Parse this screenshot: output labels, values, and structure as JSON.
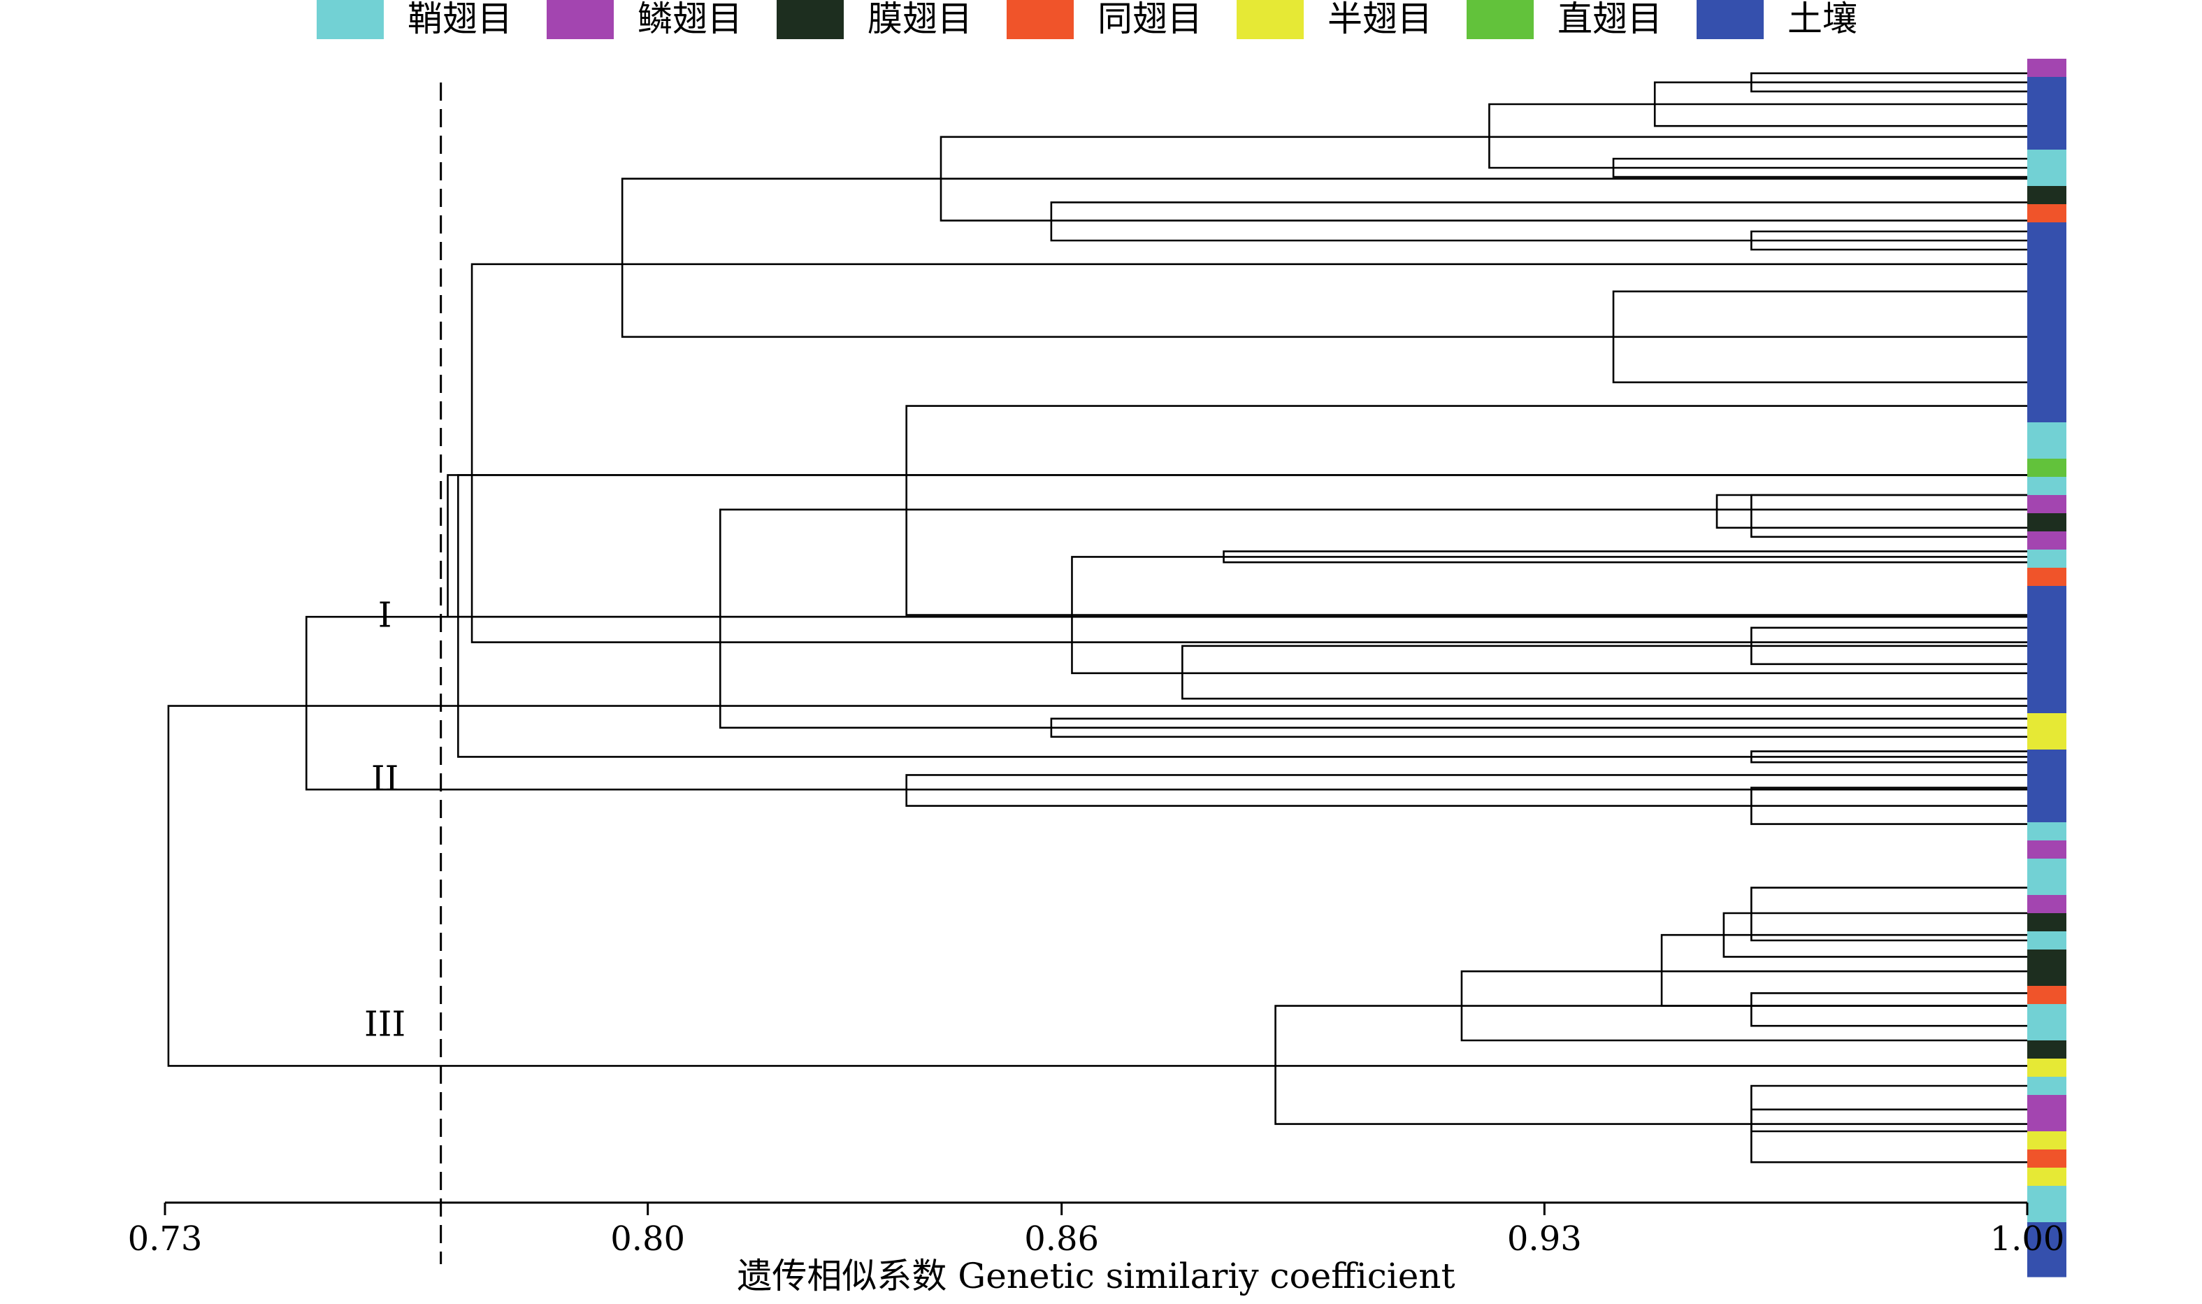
{
  "chart_data": {
    "type": "dendrogram",
    "xlabel": "遗传相似系数 Genetic similariy coefficient",
    "xlim": [
      0.73,
      1.0
    ],
    "xticks": [
      "0.73",
      "0.80",
      "0.86",
      "0.93",
      "1.00"
    ],
    "cutoff": 0.77,
    "legend": [
      {
        "label": "鞘翅目",
        "color": "#72d1d4"
      },
      {
        "label": "鳞翅目",
        "color": "#a345b0"
      },
      {
        "label": "膜翅目",
        "color": "#1d2e1f"
      },
      {
        "label": "同翅目",
        "color": "#f0542a"
      },
      {
        "label": "半翅目",
        "color": "#e6e935"
      },
      {
        "label": "直翅目",
        "color": "#62c23b"
      },
      {
        "label": "土壤",
        "color": "#3550ad"
      }
    ],
    "clusters": [
      {
        "label": "I",
        "sim": 0.77,
        "row": 31.6
      },
      {
        "label": "II",
        "sim": 0.77,
        "row": 40.6
      },
      {
        "label": "III",
        "sim": 0.77,
        "row": 54.1
      }
    ],
    "leaf_colors": [
      "鳞翅目",
      "土壤",
      "土壤",
      "土壤",
      "土壤",
      "鞘翅目",
      "鞘翅目",
      "膜翅目",
      "同翅目",
      "土壤",
      "土壤",
      "土壤",
      "土壤",
      "土壤",
      "土壤",
      "土壤",
      "土壤",
      "土壤",
      "土壤",
      "土壤",
      "鞘翅目",
      "鞘翅目",
      "直翅目",
      "鞘翅目",
      "鳞翅目",
      "膜翅目",
      "鳞翅目",
      "鞘翅目",
      "同翅目",
      "土壤",
      "土壤",
      "土壤",
      "土壤",
      "土壤",
      "土壤",
      "土壤",
      "半翅目",
      "半翅目",
      "土壤",
      "土壤",
      "土壤",
      "土壤",
      "鞘翅目",
      "鳞翅目",
      "鞘翅目",
      "鞘翅目",
      "鳞翅目",
      "膜翅目",
      "鞘翅目",
      "膜翅目",
      "膜翅目",
      "同翅目",
      "鞘翅目",
      "鞘翅目",
      "膜翅目",
      "半翅目",
      "鞘翅目",
      "鳞翅目",
      "鳞翅目",
      "半翅目",
      "同翅目",
      "半翅目",
      "鞘翅目",
      "鞘翅目",
      "土壤",
      "土壤",
      "土壤"
    ],
    "links": [
      {
        "s": 0.96,
        "y1": 0.3,
        "y2": 1.3
      },
      {
        "s": 0.946,
        "y1": 0.8,
        "y2": 3.2
      },
      {
        "s": 0.94,
        "y1": 5.0,
        "y2": 6.0
      },
      {
        "s": 0.922,
        "y1": 2.0,
        "y2": 5.5
      },
      {
        "s": 0.96,
        "y1": 9.0,
        "y2": 10.0
      },
      {
        "s": 0.8585,
        "y1": 7.4,
        "y2": 9.5
      },
      {
        "s": 0.8425,
        "y1": 3.8,
        "y2": 8.4
      },
      {
        "s": 0.94,
        "y1": 12.3,
        "y2": 17.3
      },
      {
        "s": 0.7963,
        "y1": 6.1,
        "y2": 14.8
      },
      {
        "s": 0.955,
        "y1": 23.5,
        "y2": 25.3
      },
      {
        "s": 0.96,
        "y1": 23.5,
        "y2": 25.8
      },
      {
        "s": 0.8835,
        "y1": 26.6,
        "y2": 27.2
      },
      {
        "s": 0.96,
        "y1": 30.8,
        "y2": 32.8
      },
      {
        "s": 0.8775,
        "y1": 31.8,
        "y2": 34.7
      },
      {
        "s": 0.8615,
        "y1": 26.9,
        "y2": 33.3
      },
      {
        "s": 0.8375,
        "y1": 18.6,
        "y2": 30.1
      },
      {
        "s": 0.8585,
        "y1": 35.8,
        "y2": 36.8
      },
      {
        "s": 0.8105,
        "y1": 24.3,
        "y2": 36.3
      },
      {
        "s": 0.7745,
        "y1": 10.8,
        "y2": 31.6
      },
      {
        "s": 0.96,
        "y1": 37.6,
        "y2": 38.2
      },
      {
        "s": 0.7725,
        "y1": 22.4,
        "y2": 37.9
      },
      {
        "s": 0.771,
        "y1": 22.4,
        "y2": 30.2
      },
      {
        "s": 0.96,
        "y1": 39.6,
        "y2": 41.6
      },
      {
        "s": 0.8375,
        "y1": 38.9,
        "y2": 40.6
      },
      {
        "s": 0.7505,
        "y1": 30.2,
        "y2": 39.7
      },
      {
        "s": 0.96,
        "y1": 45.1,
        "y2": 48.0
      },
      {
        "s": 0.956,
        "y1": 46.5,
        "y2": 48.9
      },
      {
        "s": 0.947,
        "y1": 47.7,
        "y2": 51.6
      },
      {
        "s": 0.96,
        "y1": 50.9,
        "y2": 52.7
      },
      {
        "s": 0.918,
        "y1": 49.7,
        "y2": 53.5
      },
      {
        "s": 0.96,
        "y1": 56.0,
        "y2": 58.5
      },
      {
        "s": 0.96,
        "y1": 57.3,
        "y2": 60.2
      },
      {
        "s": 0.891,
        "y1": 51.6,
        "y2": 58.1
      },
      {
        "s": 0.7305,
        "y1": 35.1,
        "y2": 54.9
      }
    ]
  }
}
